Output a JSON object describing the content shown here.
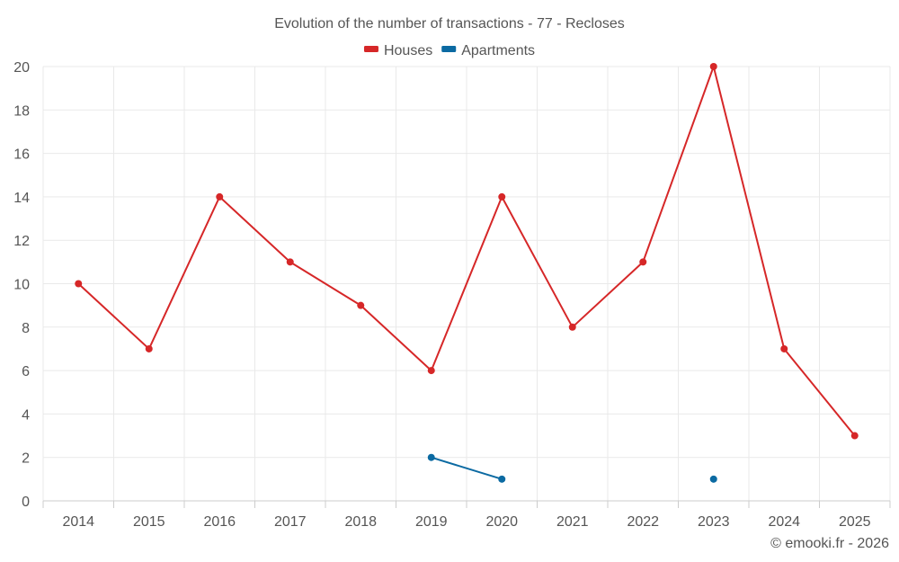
{
  "chart_data": {
    "type": "line",
    "title": "Evolution of the number of transactions - 77 - Recloses",
    "categories": [
      "2014",
      "2015",
      "2016",
      "2017",
      "2018",
      "2019",
      "2020",
      "2021",
      "2022",
      "2023",
      "2024",
      "2025"
    ],
    "ylim": [
      0,
      20
    ],
    "yticks": [
      0,
      2,
      4,
      6,
      8,
      10,
      12,
      14,
      16,
      18,
      20
    ],
    "grid": true,
    "legend_position": "top-center",
    "series": [
      {
        "name": "Houses",
        "color": "#d62728",
        "values": [
          10,
          7,
          14,
          11,
          9,
          6,
          14,
          8,
          11,
          20,
          7,
          3
        ]
      },
      {
        "name": "Apartments",
        "color": "#0b6aa2",
        "values": [
          null,
          null,
          null,
          null,
          null,
          2,
          1,
          null,
          null,
          1,
          null,
          null
        ]
      }
    ],
    "credit": "© emooki.fr - 2026"
  }
}
